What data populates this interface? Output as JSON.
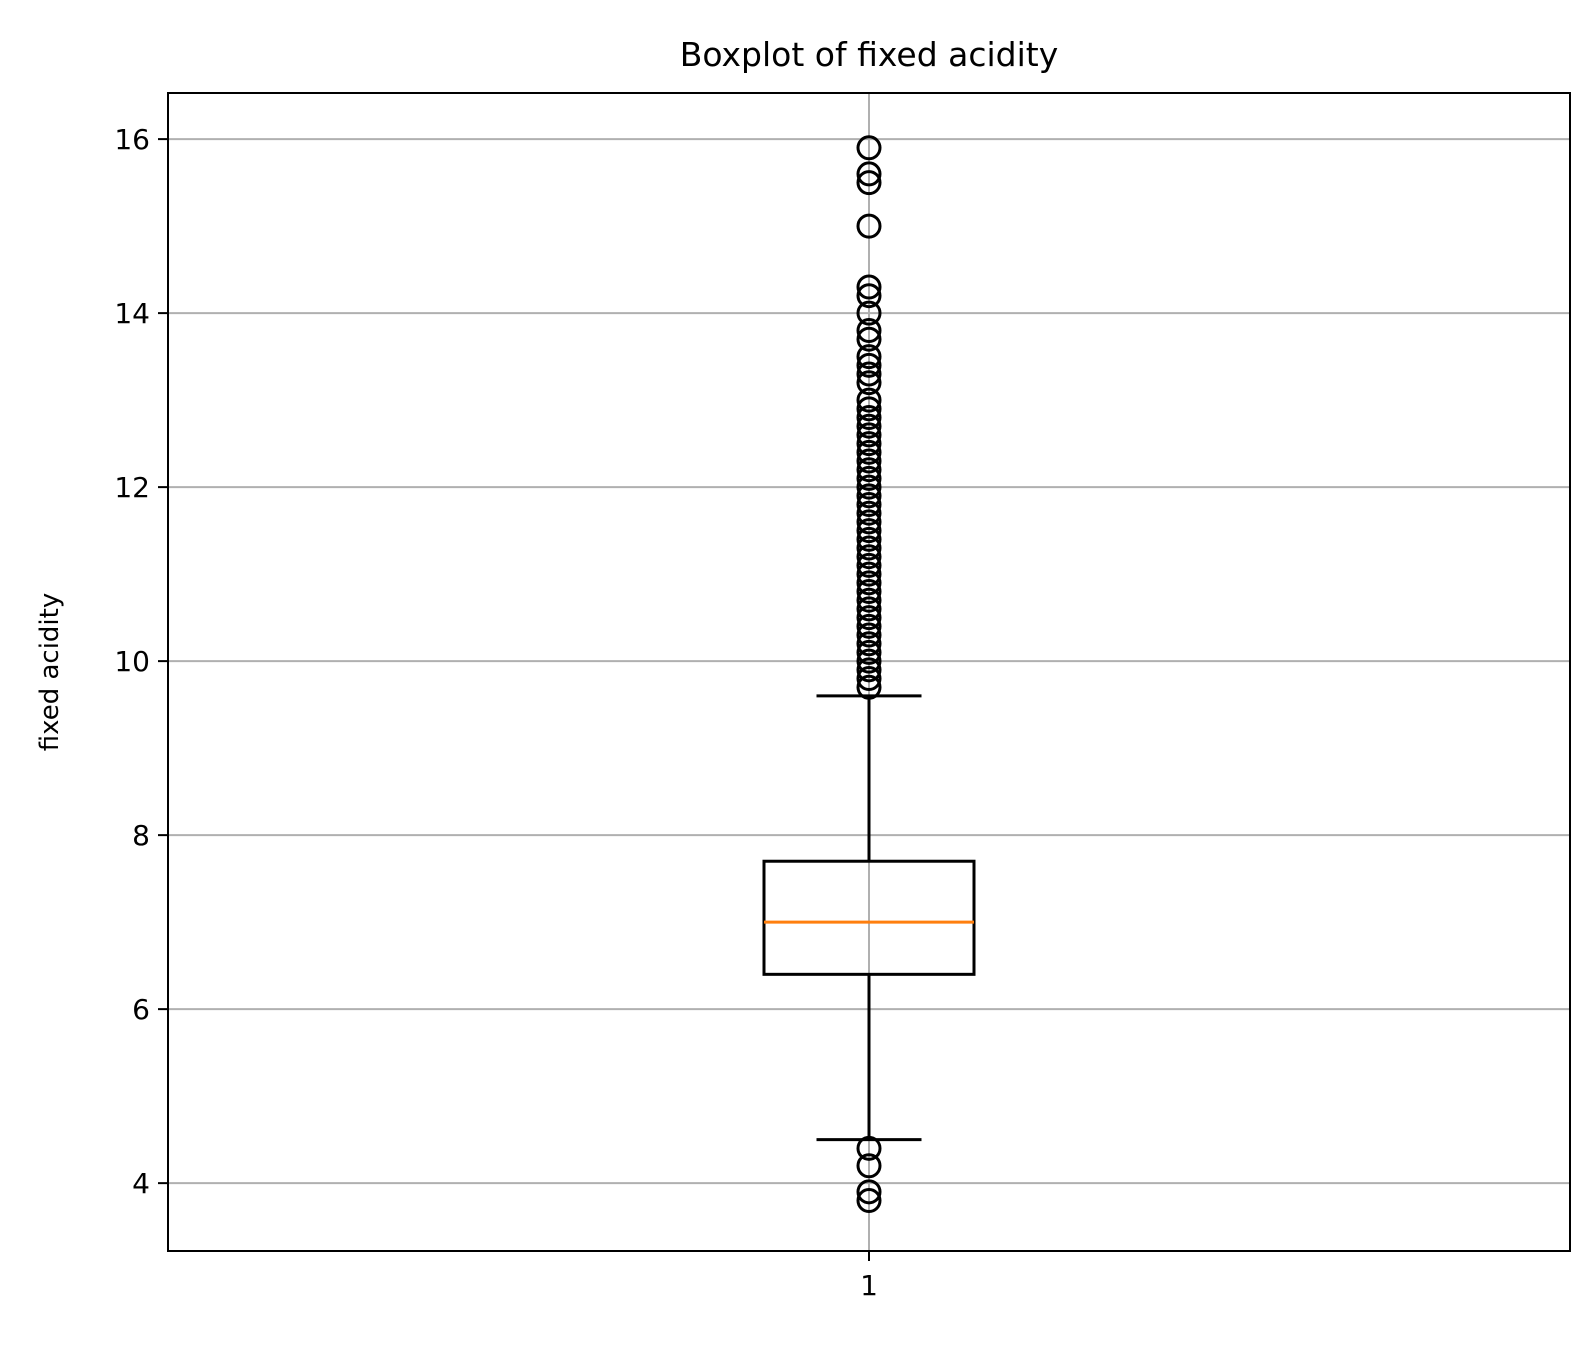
{
  "chart_data": {
    "type": "boxplot",
    "title": "Boxplot of fixed acidity",
    "xlabel": "",
    "ylabel": "fixed acidity",
    "categories": [
      "1"
    ],
    "ylim": [
      3.22,
      16.53
    ],
    "yticks": [
      4,
      6,
      8,
      10,
      12,
      14,
      16
    ],
    "grid": true,
    "boxes": [
      {
        "category": "1",
        "whisker_low": 4.5,
        "q1": 6.4,
        "median": 7.0,
        "q3": 7.7,
        "whisker_high": 9.6,
        "outliers": [
          3.8,
          3.9,
          4.2,
          4.4,
          9.7,
          9.8,
          9.9,
          10.0,
          10.1,
          10.2,
          10.3,
          10.4,
          10.5,
          10.6,
          10.7,
          10.8,
          10.9,
          11.0,
          11.1,
          11.2,
          11.3,
          11.4,
          11.5,
          11.6,
          11.7,
          11.8,
          11.9,
          12.0,
          12.1,
          12.2,
          12.3,
          12.4,
          12.5,
          12.6,
          12.7,
          12.8,
          12.9,
          13.0,
          13.2,
          13.3,
          13.4,
          13.5,
          13.7,
          13.8,
          14.0,
          14.2,
          14.3,
          15.0,
          15.5,
          15.6,
          15.9
        ]
      }
    ],
    "colors": {
      "box": "#000000",
      "median": "#ff7f0e",
      "grid": "#b0b0b0",
      "outlier_edge": "#000000"
    }
  }
}
